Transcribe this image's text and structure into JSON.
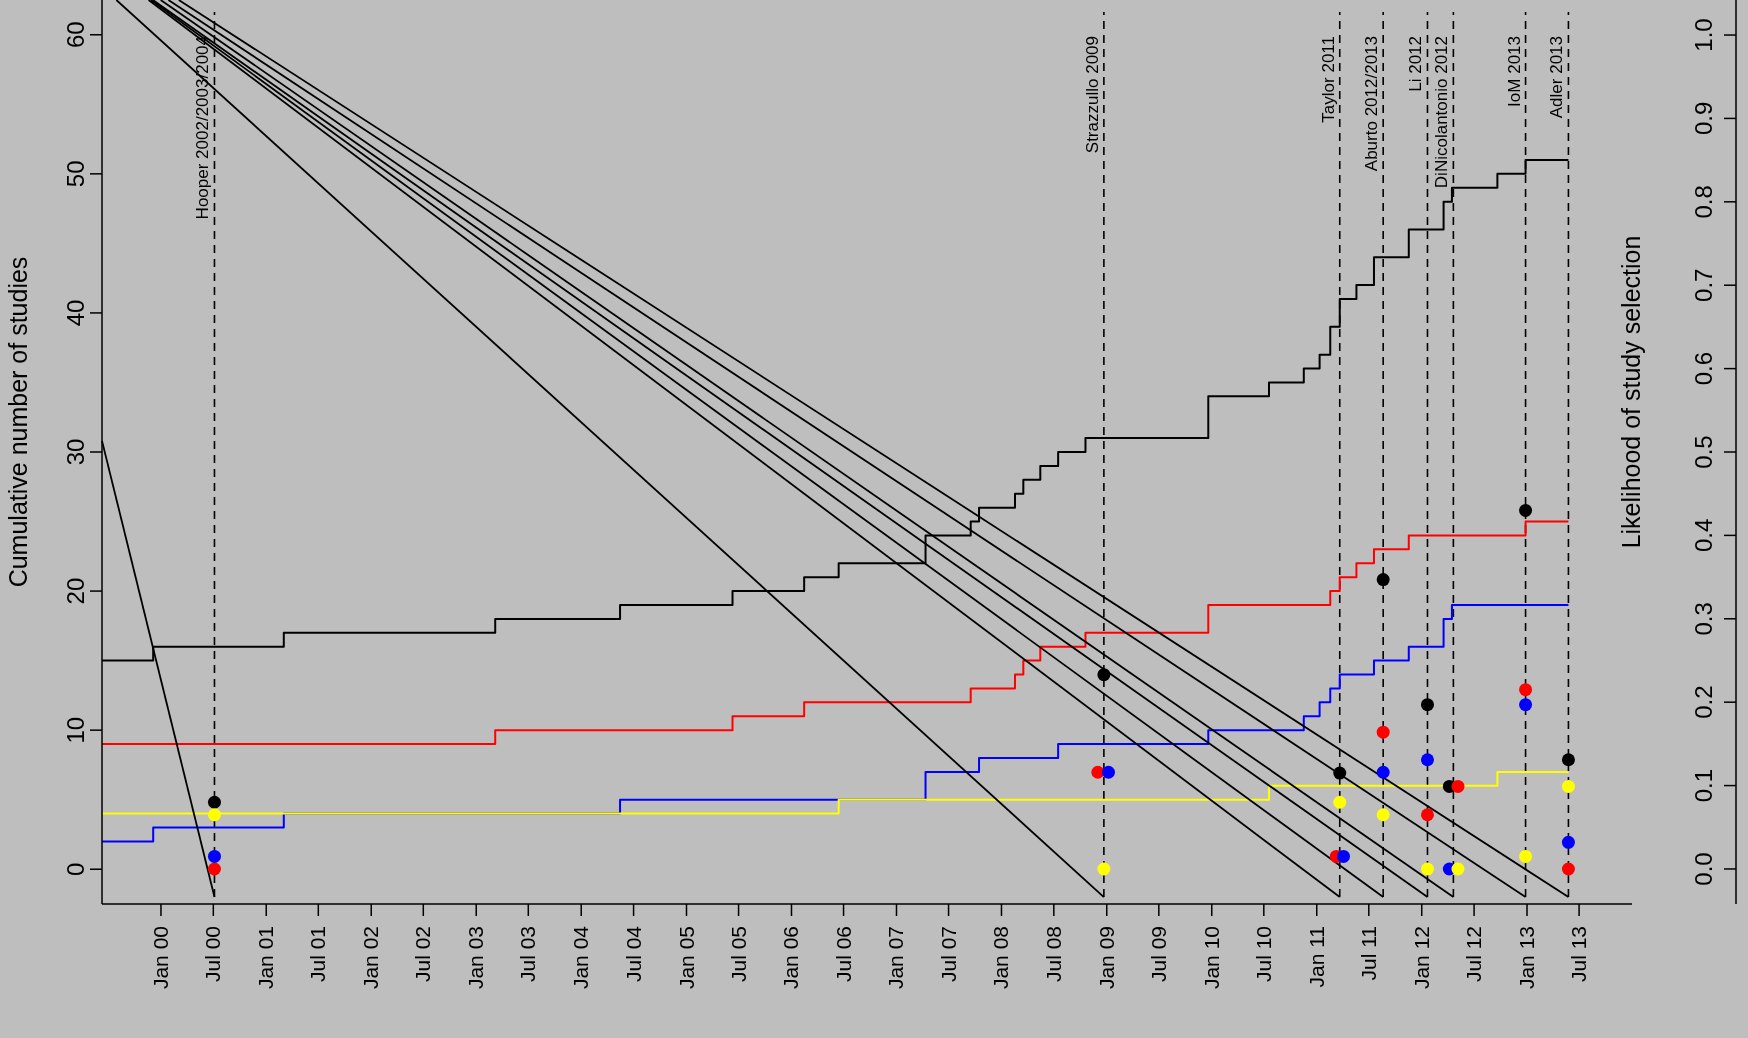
{
  "chart_data": {
    "type": "step",
    "ylabel": "Cumulative number of studies",
    "y2label": "Likelihood of study selection",
    "xlim": [
      "1999-06-10",
      "2014-01-01"
    ],
    "ylim": [
      -2.5,
      62.5
    ],
    "y2lim": [
      -0.042,
      1.042
    ],
    "xticks": [
      {
        "value": "2000-01-01",
        "label": "Jan 00"
      },
      {
        "value": "2000-07-01",
        "label": "Jul 00"
      },
      {
        "value": "2001-01-01",
        "label": "Jan 01"
      },
      {
        "value": "2001-07-01",
        "label": "Jul 01"
      },
      {
        "value": "2002-01-01",
        "label": "Jan 02"
      },
      {
        "value": "2002-07-01",
        "label": "Jul 02"
      },
      {
        "value": "2003-01-01",
        "label": "Jan 03"
      },
      {
        "value": "2003-07-01",
        "label": "Jul 03"
      },
      {
        "value": "2004-01-01",
        "label": "Jan 04"
      },
      {
        "value": "2004-07-01",
        "label": "Jul 04"
      },
      {
        "value": "2005-01-01",
        "label": "Jan 05"
      },
      {
        "value": "2005-07-01",
        "label": "Jul 05"
      },
      {
        "value": "2006-01-01",
        "label": "Jan 06"
      },
      {
        "value": "2006-07-01",
        "label": "Jul 06"
      },
      {
        "value": "2007-01-01",
        "label": "Jan 07"
      },
      {
        "value": "2007-07-01",
        "label": "Jul 07"
      },
      {
        "value": "2008-01-01",
        "label": "Jan 08"
      },
      {
        "value": "2008-07-01",
        "label": "Jul 08"
      },
      {
        "value": "2009-01-01",
        "label": "Jan 09"
      },
      {
        "value": "2009-07-01",
        "label": "Jul 09"
      },
      {
        "value": "2010-01-01",
        "label": "Jan 10"
      },
      {
        "value": "2010-07-01",
        "label": "Jul 10"
      },
      {
        "value": "2011-01-01",
        "label": "Jan 11"
      },
      {
        "value": "2011-07-01",
        "label": "Jul 11"
      },
      {
        "value": "2012-01-01",
        "label": "Jan 12"
      },
      {
        "value": "2012-07-01",
        "label": "Jul 12"
      },
      {
        "value": "2013-01-01",
        "label": "Jan 13"
      },
      {
        "value": "2013-07-01",
        "label": "Jul 13"
      }
    ],
    "yticks": [
      0,
      10,
      20,
      30,
      40,
      50,
      60
    ],
    "y2ticks": [
      {
        "value": 0,
        "label": "0.0"
      },
      {
        "value": 0.1,
        "label": "0.1"
      },
      {
        "value": 0.2,
        "label": "0.2"
      },
      {
        "value": 0.3,
        "label": "0.3"
      },
      {
        "value": 0.4,
        "label": "0.4"
      },
      {
        "value": 0.5,
        "label": "0.5"
      },
      {
        "value": 0.6,
        "label": "0.6"
      },
      {
        "value": 0.7,
        "label": "0.7"
      },
      {
        "value": 0.8,
        "label": "0.8"
      },
      {
        "value": 0.9,
        "label": "0.9"
      },
      {
        "value": 1,
        "label": "1.0"
      }
    ],
    "grid": false,
    "series": [
      {
        "color": "#000000",
        "x": [
          "1999-06-10",
          "1999-12-05",
          "2001-03-03",
          "2003-03-08",
          "2004-05-15",
          "2005-06-10",
          "2006-02-14",
          "2006-06-14",
          "2007-04-12",
          "2007-09-16",
          "2007-10-15",
          "2008-02-17",
          "2008-03-17",
          "2008-05-15",
          "2008-07-16",
          "2008-10-19",
          "2009-12-20",
          "2010-07-19",
          "2010-11-17",
          "2011-01-11",
          "2011-02-17",
          "2011-03-22",
          "2011-05-19",
          "2011-07-19",
          "2011-11-17",
          "2012-03-17",
          "2012-04-15",
          "2012-09-20",
          "2012-12-27",
          "2013-05-25"
        ],
        "values": [
          15,
          16,
          17,
          18,
          19,
          20,
          21,
          22,
          24,
          25,
          26,
          27,
          28,
          29,
          30,
          31,
          34,
          35,
          36,
          37,
          39,
          41,
          42,
          44,
          46,
          48,
          49,
          50,
          51,
          51
        ]
      },
      {
        "color": "#ff0000",
        "x": [
          "1999-06-10",
          "2003-03-08",
          "2005-06-10",
          "2006-02-14",
          "2007-09-16",
          "2008-02-17",
          "2008-03-17",
          "2008-05-15",
          "2008-10-19",
          "2009-12-20",
          "2011-02-17",
          "2011-03-22",
          "2011-05-19",
          "2011-07-19",
          "2011-11-17",
          "2012-12-27",
          "2013-05-25"
        ],
        "values": [
          9,
          10,
          11,
          12,
          13,
          14,
          15,
          16,
          17,
          19,
          20,
          21,
          22,
          23,
          24,
          25,
          25
        ]
      },
      {
        "color": "#0000ff",
        "x": [
          "1999-06-10",
          "1999-12-05",
          "2001-03-03",
          "2004-05-15",
          "2007-04-12",
          "2007-10-15",
          "2008-07-16",
          "2009-12-20",
          "2010-11-17",
          "2011-01-11",
          "2011-02-17",
          "2011-03-22",
          "2011-07-19",
          "2011-11-17",
          "2012-03-17",
          "2012-04-15",
          "2013-05-25"
        ],
        "values": [
          2,
          3,
          4,
          5,
          7,
          8,
          9,
          10,
          11,
          12,
          13,
          14,
          15,
          16,
          18,
          19,
          19
        ]
      },
      {
        "color": "#ffff00",
        "x": [
          "1999-06-10",
          "2006-06-14",
          "2010-07-19",
          "2012-09-20",
          "2013-05-25"
        ],
        "values": [
          4,
          5,
          6,
          7,
          7
        ]
      },
      {
        "type": "line",
        "color": "#000000",
        "x": [
          "1999-06-10",
          "2000-07-05"
        ],
        "values": [
          30.8,
          -2
        ]
      },
      {
        "type": "line",
        "color": "#000000",
        "x": [
          "1999-07-30",
          "2008-12-22"
        ],
        "values": [
          62.5,
          -2
        ]
      },
      {
        "type": "line",
        "color": "#000000",
        "x": [
          "1999-11-19",
          "2011-03-22"
        ],
        "values": [
          62.5,
          -2
        ]
      },
      {
        "type": "line",
        "color": "#000000",
        "x": [
          "1999-11-27",
          "2011-08-20"
        ],
        "values": [
          62.5,
          -2
        ]
      },
      {
        "type": "line",
        "color": "#000000",
        "x": [
          "1999-12-04",
          "2012-01-21"
        ],
        "values": [
          62.5,
          -2
        ]
      },
      {
        "type": "line",
        "color": "#000000",
        "x": [
          "1999-12-31",
          "2012-04-20"
        ],
        "values": [
          62.5,
          -2
        ]
      },
      {
        "type": "line",
        "color": "#000000",
        "x": [
          "2000-01-27",
          "2012-12-27"
        ],
        "values": [
          62.5,
          -2
        ]
      },
      {
        "type": "line",
        "color": "#000000",
        "x": [
          "2000-03-03",
          "2013-05-25"
        ],
        "values": [
          62.5,
          -2
        ]
      },
      {
        "type": "scatter",
        "axis": "y2",
        "marker": "circle",
        "color": "#000000",
        "x": [
          "2000-07-05",
          "2008-12-22",
          "2011-03-22",
          "2011-08-20",
          "2012-01-21",
          "2012-04-06",
          "2012-12-27",
          "2013-05-25"
        ],
        "values": [
          0.08,
          0.233,
          0.115,
          0.347,
          0.197,
          0.099,
          0.43,
          0.131
        ]
      },
      {
        "type": "scatter",
        "axis": "y2",
        "marker": "circle",
        "color": "#ff0000",
        "x": [
          "2000-07-05",
          "2008-12-01",
          "2011-03-10",
          "2011-08-20",
          "2012-01-21",
          "2012-05-06",
          "2012-12-27",
          "2013-05-25"
        ],
        "values": [
          0,
          0.116,
          0.015,
          0.164,
          0.065,
          0.099,
          0.215,
          0
        ]
      },
      {
        "type": "scatter",
        "axis": "y2",
        "marker": "circle",
        "color": "#0000ff",
        "x": [
          "2000-07-05",
          "2009-01-07",
          "2011-04-04",
          "2011-08-20",
          "2012-01-21",
          "2012-04-06",
          "2012-12-27",
          "2013-05-25"
        ],
        "values": [
          0.015,
          0.116,
          0.015,
          0.116,
          0.131,
          0,
          0.197,
          0.032
        ]
      },
      {
        "type": "scatter",
        "axis": "y2",
        "marker": "circle",
        "color": "#ffff00",
        "x": [
          "2000-07-05",
          "2008-12-22",
          "2011-03-22",
          "2011-08-20",
          "2012-01-21",
          "2012-05-06",
          "2012-12-27",
          "2013-05-25"
        ],
        "values": [
          0.065,
          0,
          0.08,
          0.065,
          0,
          0,
          0.015,
          0.099
        ]
      }
    ],
    "ref_lines": [
      {
        "axis": "x",
        "value": "2000-07-05",
        "label": "Hooper 2002/2003/2004",
        "color": "#000000",
        "line_style": "dashed"
      },
      {
        "axis": "x",
        "value": "2008-12-22",
        "label": "Strazzullo 2009",
        "color": "#000000",
        "line_style": "dashed"
      },
      {
        "axis": "x",
        "value": "2011-03-22",
        "label": "Taylor 2011",
        "color": "#000000",
        "line_style": "dashed"
      },
      {
        "axis": "x",
        "value": "2011-08-20",
        "label": "Aburto 2012/2013",
        "color": "#000000",
        "line_style": "dashed"
      },
      {
        "axis": "x",
        "value": "2012-01-21",
        "label": "Li 2012",
        "color": "#000000",
        "line_style": "dashed"
      },
      {
        "axis": "x",
        "value": "2012-04-20",
        "label": "DiNicolantonio 2012",
        "color": "#000000",
        "line_style": "dashed"
      },
      {
        "axis": "x",
        "value": "2012-12-27",
        "label": "IoM 2013",
        "color": "#000000",
        "line_style": "dashed"
      },
      {
        "axis": "x",
        "value": "2013-05-25",
        "label": "Adler 2013",
        "color": "#000000",
        "line_style": "dashed"
      }
    ]
  }
}
